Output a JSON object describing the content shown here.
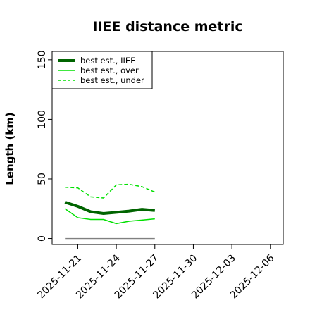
{
  "chart_data": {
    "type": "line",
    "title": "IIEE distance metric",
    "xlabel": "",
    "ylabel": "Length (km)",
    "x": [
      "2025-11-20",
      "2025-11-21",
      "2025-11-22",
      "2025-11-23",
      "2025-11-24",
      "2025-11-25",
      "2025-11-26",
      "2025-11-27"
    ],
    "xlim": [
      "2025-11-19",
      "2025-12-07"
    ],
    "ylim": [
      -5,
      157
    ],
    "xticks": [
      "2025-11-21",
      "2025-11-24",
      "2025-11-27",
      "2025-11-30",
      "2025-12-03",
      "2025-12-06"
    ],
    "yticks": [
      0,
      50,
      100,
      150
    ],
    "grid": false,
    "legend_position": "top-left",
    "series": [
      {
        "name": "best est., IIEE",
        "color": "#006400",
        "style": "solid-thick",
        "values": [
          30.5,
          27,
          22.5,
          21,
          22,
          23,
          24.5,
          23.5
        ]
      },
      {
        "name": "best est., over",
        "color": "#00e000",
        "style": "solid",
        "values": [
          25,
          17.5,
          16,
          16,
          12.5,
          14.5,
          15.5,
          16.5
        ]
      },
      {
        "name": "best est., under",
        "color": "#00e000",
        "style": "dashed",
        "values": [
          43,
          42.5,
          35,
          34,
          45,
          45.5,
          43.5,
          39
        ]
      },
      {
        "name": "",
        "color": "#808080",
        "style": "solid-thin",
        "values": [
          0,
          0,
          0,
          0,
          0,
          0,
          0,
          0
        ]
      }
    ]
  }
}
